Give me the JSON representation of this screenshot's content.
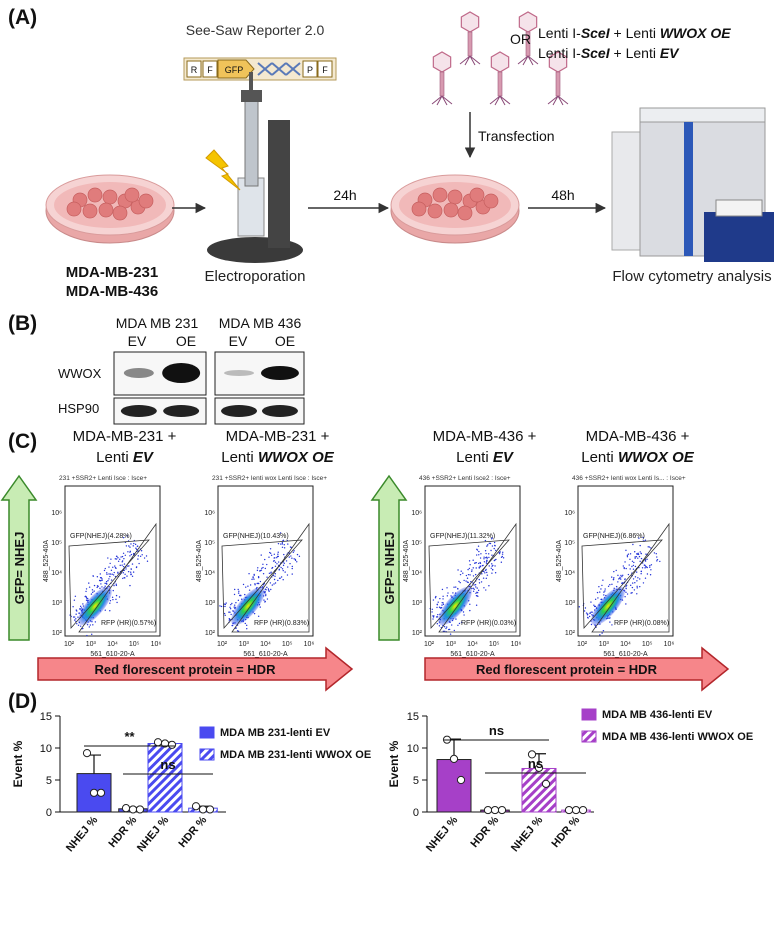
{
  "panel_labels": [
    "(A)",
    "(B)",
    "(C)",
    "(D)"
  ],
  "workflow": {
    "reporter": "See-Saw Reporter 2.0",
    "construct": [
      "R",
      "F",
      "GFP",
      "P",
      "F"
    ],
    "or": "OR",
    "lenti_options": [
      [
        "Lenti I-",
        "SceI",
        " + Lenti ",
        "WWOX OE"
      ],
      [
        "Lenti I-",
        "SceI",
        " + Lenti ",
        "EV"
      ]
    ],
    "transfection": "Transfection",
    "cells": [
      "MDA-MB-231",
      "MDA-MB-436"
    ],
    "electroporation": "Electroporation",
    "step1": "24h",
    "step2": "48h",
    "analysis": "Flow cytometry analysis"
  },
  "blot": {
    "cell_lines": [
      "MDA MB 231",
      "MDA MB 436"
    ],
    "lanes": [
      "EV",
      "OE"
    ],
    "proteins": [
      "WWOX",
      "HSP90"
    ]
  },
  "flow": {
    "y_arrow": "GFP= NHEJ",
    "x_arrow": "Red florescent protein = HDR",
    "y_label": "488_525-40A",
    "x_label": "561_610-20-A",
    "axis_ticks": [
      "10²",
      "10³",
      "10⁴",
      "10⁵",
      "10⁶"
    ],
    "plots": [
      {
        "title": "MDA-MB-231 +",
        "subtitle": [
          "Lenti ",
          "EV"
        ],
        "header": "231 +SSR2+ Lenti Isce : Isce+",
        "gfp_gate": "GFP(NHEJ)(4.28%)",
        "rfp_gate": "RFP (HR)(0.57%)"
      },
      {
        "title": "MDA-MB-231 +",
        "subtitle": [
          "Lenti ",
          "WWOX OE"
        ],
        "header": "231 +SSR2+ lenti wox Lenti Isce : Isce+",
        "gfp_gate": "GFP(NHEJ)(10.43%)",
        "rfp_gate": "RFP (HR)(0.83%)"
      },
      {
        "title": "MDA-MB-436 +",
        "subtitle": [
          "Lenti ",
          "EV"
        ],
        "header": "436 +SSR2+ Lenti Isce2 : Isce+",
        "gfp_gate": "GFP(NHEJ)(11.32%)",
        "rfp_gate": "RFP (HR)(0.03%)"
      },
      {
        "title": "MDA-MB-436 +",
        "subtitle": [
          "Lenti ",
          "WWOX OE"
        ],
        "header": "436 +SSR2+ lenti wox Lenti Is... : Isce+",
        "gfp_gate": "GFP(NHEJ)(6.86%)",
        "rfp_gate": "RFP (HR)(0.08%)"
      }
    ]
  },
  "chart_data": [
    {
      "type": "bar",
      "y_label": "Event %",
      "categories": [
        "NHEJ %",
        "HDR %"
      ],
      "ylim": [
        0,
        15
      ],
      "yticks": [
        0,
        5,
        10,
        15
      ],
      "annotations": [
        "**",
        "ns"
      ],
      "series": [
        {
          "name": "MDA MB 231-lenti EV",
          "color": "#4a4af0",
          "hatch": false,
          "values": [
            6.0,
            0.5
          ],
          "errors": [
            2.9,
            0.2
          ],
          "points": [
            [
              9.2,
              3.0,
              3.0
            ],
            [
              0.6,
              0.4,
              0.4
            ]
          ]
        },
        {
          "name": "MDA MB 231-lenti WWOX OE",
          "color": "#4a4af0",
          "hatch": true,
          "values": [
            10.7,
            0.6
          ],
          "errors": [
            0.2,
            0.3
          ],
          "points": [
            [
              10.9,
              10.7,
              10.5
            ],
            [
              0.9,
              0.4,
              0.4
            ]
          ]
        }
      ]
    },
    {
      "type": "bar",
      "y_label": "Event %",
      "categories": [
        "NHEJ %",
        "HDR %"
      ],
      "ylim": [
        0,
        15
      ],
      "yticks": [
        0,
        5,
        10,
        15
      ],
      "annotations": [
        "ns",
        "ns"
      ],
      "series": [
        {
          "name": "MDA MB 436-lenti EV",
          "color": "#a640c8",
          "hatch": false,
          "values": [
            8.2,
            0.3
          ],
          "errors": [
            3.2,
            0.1
          ],
          "points": [
            [
              11.3,
              8.3,
              5.0
            ],
            [
              0.3,
              0.3,
              0.3
            ]
          ]
        },
        {
          "name": "MDA MB 436-lenti WWOX OE",
          "color": "#a640c8",
          "hatch": true,
          "values": [
            6.8,
            0.3
          ],
          "errors": [
            2.3,
            0.1
          ],
          "points": [
            [
              9.0,
              6.9,
              4.4
            ],
            [
              0.3,
              0.3,
              0.3
            ]
          ]
        }
      ]
    }
  ]
}
